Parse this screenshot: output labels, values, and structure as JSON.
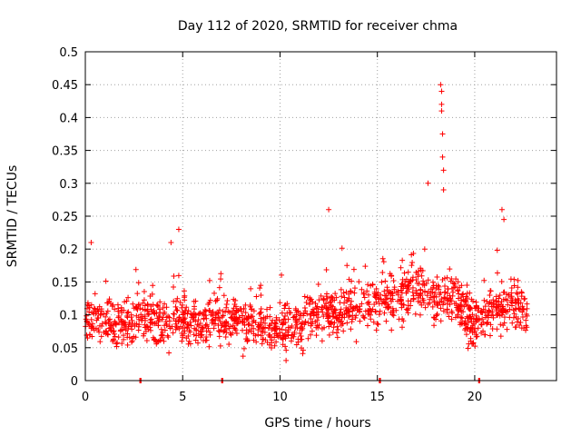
{
  "chart_data": {
    "type": "scatter",
    "title": "Day 112 of 2020, SRMTID for receiver chma",
    "xlabel": "GPS time / hours",
    "ylabel": "SRMTID / TECUs",
    "xlim": [
      0,
      24.2
    ],
    "ylim": [
      0,
      0.5
    ],
    "xticks": [
      0,
      5,
      10,
      15,
      20
    ],
    "xtick_labels": [
      "0",
      "5",
      "10",
      "15",
      "20"
    ],
    "yticks": [
      0,
      0.05,
      0.1,
      0.15,
      0.2,
      0.25,
      0.3,
      0.35,
      0.4,
      0.45,
      0.5
    ],
    "ytick_labels": [
      "0",
      "0.05",
      "0.1",
      "0.15",
      "0.2",
      "0.25",
      "0.3",
      "0.35",
      "0.4",
      "0.45",
      "0.5"
    ],
    "grid": true,
    "marker": "+",
    "series_color": "#ff0000",
    "time_range": [
      0,
      22.7
    ],
    "baseline_profile": [
      [
        0,
        0.095
      ],
      [
        1,
        0.09
      ],
      [
        2,
        0.09
      ],
      [
        3,
        0.095
      ],
      [
        4,
        0.09
      ],
      [
        5,
        0.095
      ],
      [
        6,
        0.09
      ],
      [
        7,
        0.09
      ],
      [
        8,
        0.09
      ],
      [
        9,
        0.085
      ],
      [
        10,
        0.075
      ],
      [
        11,
        0.08
      ],
      [
        12,
        0.105
      ],
      [
        13,
        0.11
      ],
      [
        14,
        0.115
      ],
      [
        15,
        0.12
      ],
      [
        16,
        0.125
      ],
      [
        17,
        0.14
      ],
      [
        18,
        0.13
      ],
      [
        19,
        0.12
      ],
      [
        20,
        0.085
      ],
      [
        21,
        0.11
      ],
      [
        22,
        0.115
      ],
      [
        22.7,
        0.1
      ]
    ],
    "spread": 0.035,
    "zero_values": [
      2.8,
      7.0,
      15.1,
      20.2
    ],
    "spikes": [
      {
        "x": 0.3,
        "y": 0.21
      },
      {
        "x": 4.4,
        "y": 0.21
      },
      {
        "x": 4.8,
        "y": 0.23
      },
      {
        "x": 12.5,
        "y": 0.26
      },
      {
        "x": 17.6,
        "y": 0.3
      },
      {
        "x": 18.25,
        "y": 0.45
      },
      {
        "x": 18.3,
        "y": 0.44
      },
      {
        "x": 18.3,
        "y": 0.42
      },
      {
        "x": 18.3,
        "y": 0.41
      },
      {
        "x": 18.35,
        "y": 0.375
      },
      {
        "x": 18.35,
        "y": 0.34
      },
      {
        "x": 18.4,
        "y": 0.32
      },
      {
        "x": 18.4,
        "y": 0.29
      },
      {
        "x": 21.4,
        "y": 0.26
      },
      {
        "x": 21.5,
        "y": 0.245
      }
    ]
  }
}
